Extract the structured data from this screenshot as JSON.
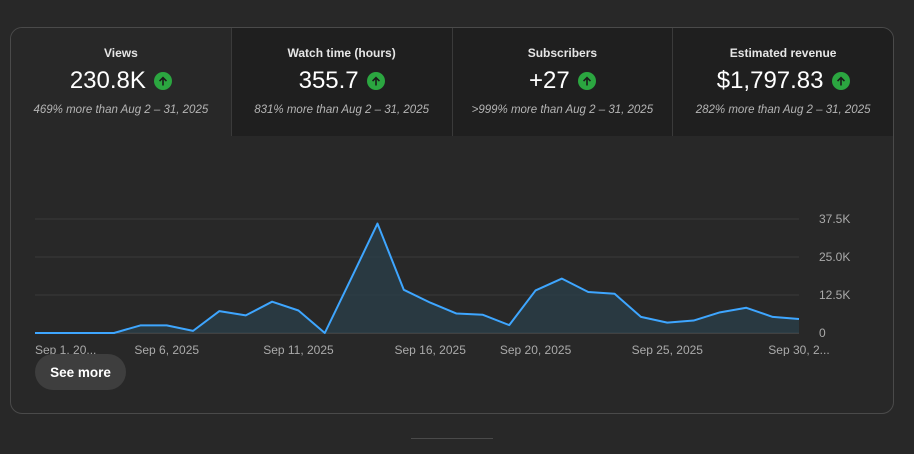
{
  "metrics": [
    {
      "label": "Views",
      "value": "230.8K",
      "compare": "469% more than Aug 2 – 31, 2025",
      "trend": "up"
    },
    {
      "label": "Watch time (hours)",
      "value": "355.7",
      "compare": "831% more than Aug 2 – 31, 2025",
      "trend": "up"
    },
    {
      "label": "Subscribers",
      "value": "+27",
      "compare": ">999% more than Aug 2 – 31, 2025",
      "trend": "up"
    },
    {
      "label": "Estimated revenue",
      "value": "$1,797.83",
      "compare": "282% more than Aug 2 – 31, 2025",
      "trend": "up"
    }
  ],
  "see_more_label": "See more",
  "colors": {
    "line": "#3ea6ff",
    "area": "#2a3f4a",
    "trend_up": "#2ba640",
    "grid": "#3a3a3a"
  },
  "chart_data": {
    "type": "area",
    "x": [
      "Sep 1",
      "Sep 2",
      "Sep 3",
      "Sep 4",
      "Sep 5",
      "Sep 6",
      "Sep 7",
      "Sep 8",
      "Sep 9",
      "Sep 10",
      "Sep 11",
      "Sep 12",
      "Sep 13",
      "Sep 14",
      "Sep 15",
      "Sep 16",
      "Sep 17",
      "Sep 18",
      "Sep 19",
      "Sep 20",
      "Sep 21",
      "Sep 22",
      "Sep 23",
      "Sep 24",
      "Sep 25",
      "Sep 26",
      "Sep 27",
      "Sep 28",
      "Sep 29",
      "Sep 30"
    ],
    "series": [
      {
        "values": [
          0,
          0,
          0,
          0,
          2500,
          2500,
          700,
          7200,
          5800,
          10300,
          7400,
          0,
          17900,
          36000,
          14200,
          10000,
          6400,
          6000,
          2600,
          14000,
          17900,
          13500,
          12900,
          5300,
          3400,
          4100,
          6800,
          8300,
          5300,
          4600
        ]
      }
    ],
    "x_tick_labels": [
      "Sep 1, 20...",
      "Sep 6, 2025",
      "Sep 11, 2025",
      "Sep 16, 2025",
      "Sep 20, 2025",
      "Sep 25, 2025",
      "Sep 30, 2..."
    ],
    "x_tick_index": [
      0,
      5,
      10,
      15,
      19,
      24,
      29
    ],
    "y_ticks": [
      0,
      12500,
      25000,
      37500
    ],
    "y_tick_labels": [
      "0",
      "12.5K",
      "25.0K",
      "37.5K"
    ],
    "ylim": [
      0,
      37500
    ],
    "grid": true
  }
}
